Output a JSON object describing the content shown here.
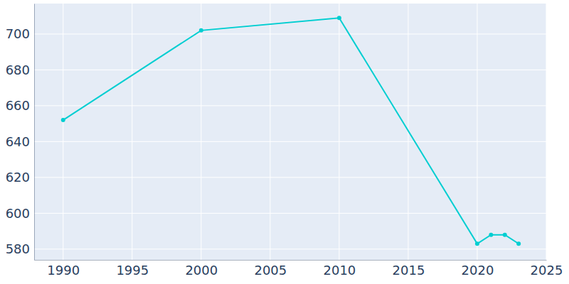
{
  "chart_data": {
    "type": "line",
    "x": [
      1990,
      2000,
      2010,
      2020,
      2021,
      2022,
      2023
    ],
    "values": [
      652,
      702,
      709,
      583,
      588,
      588,
      583
    ],
    "color": "#00ced1",
    "marker": "circle",
    "xlim": [
      1987.9,
      2025
    ],
    "xticks": [
      1990,
      1995,
      2000,
      2005,
      2010,
      2015,
      2020,
      2025
    ],
    "ylim": [
      574,
      717
    ],
    "yticks": [
      580,
      600,
      620,
      640,
      660,
      680,
      700
    ],
    "grid": true
  }
}
